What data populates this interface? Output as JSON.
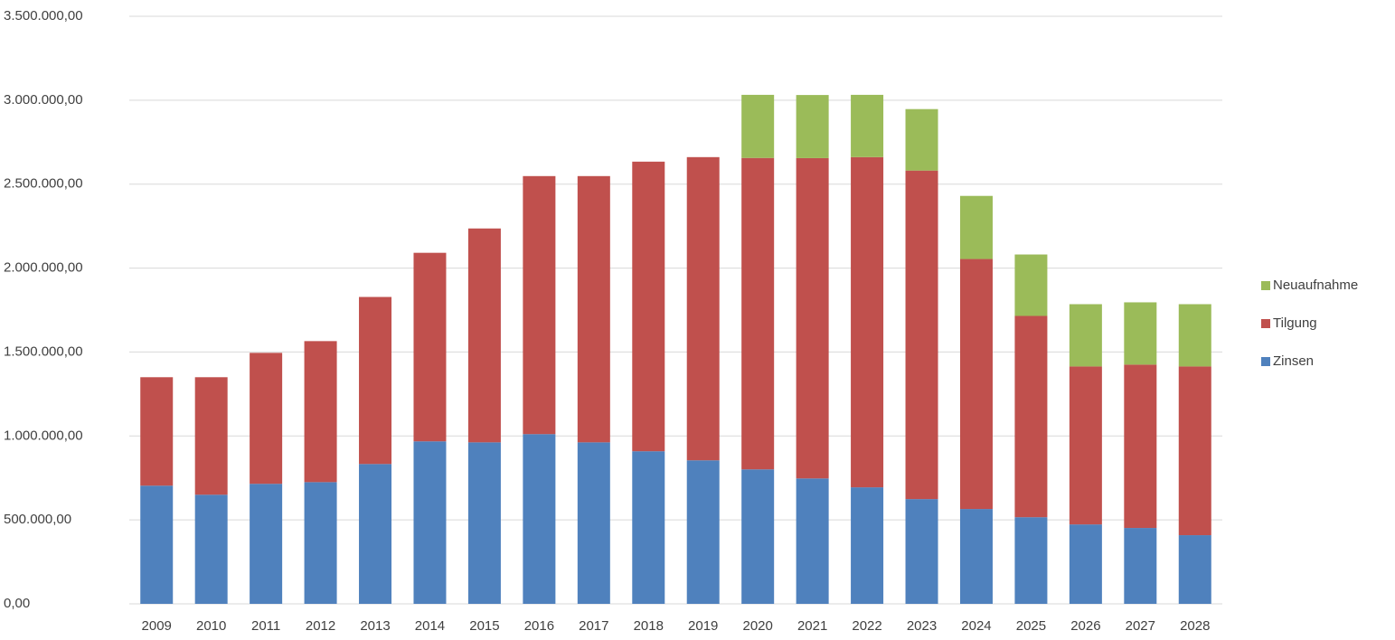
{
  "chart_data": {
    "type": "stacked_bar",
    "categories": [
      "2009",
      "2010",
      "2011",
      "2012",
      "2013",
      "2014",
      "2015",
      "2016",
      "2017",
      "2018",
      "2019",
      "2020",
      "2021",
      "2022",
      "2023",
      "2024",
      "2025",
      "2026",
      "2027",
      "2028"
    ],
    "series": [
      {
        "name": "Zinsen",
        "color": "#4f81bd",
        "values": [
          704000,
          650000,
          715000,
          725000,
          833000,
          968000,
          962000,
          1011000,
          962000,
          909000,
          855000,
          801000,
          747000,
          694000,
          624000,
          565000,
          516000,
          473000,
          452000,
          409000
        ]
      },
      {
        "name": "Tilgung",
        "color": "#c0504d",
        "values": [
          646000,
          700000,
          780000,
          840000,
          995000,
          1123000,
          1274000,
          1537000,
          1586000,
          1725000,
          1806000,
          1855000,
          1908000,
          1967000,
          1957000,
          1489000,
          1199000,
          941000,
          973000,
          1005000
        ]
      },
      {
        "name": "Neuaufnahme",
        "color": "#9bbb59",
        "values": [
          null,
          null,
          null,
          null,
          null,
          null,
          null,
          null,
          null,
          null,
          null,
          376000,
          376000,
          371000,
          366000,
          376000,
          366000,
          371000,
          371000,
          371000
        ]
      }
    ],
    "ylim": [
      0,
      3500000
    ],
    "yticks": [
      {
        "value": 0,
        "label": "0,00"
      },
      {
        "value": 500000,
        "label": "500.000,00"
      },
      {
        "value": 1000000,
        "label": "1.000.000,00"
      },
      {
        "value": 1500000,
        "label": "1.500.000,00"
      },
      {
        "value": 2000000,
        "label": "2.000.000,00"
      },
      {
        "value": 2500000,
        "label": "2.500.000,00"
      },
      {
        "value": 3000000,
        "label": "3.000.000,00"
      },
      {
        "value": 3500000,
        "label": "3.500.000,00"
      }
    ],
    "grid": true,
    "legend": "right"
  }
}
